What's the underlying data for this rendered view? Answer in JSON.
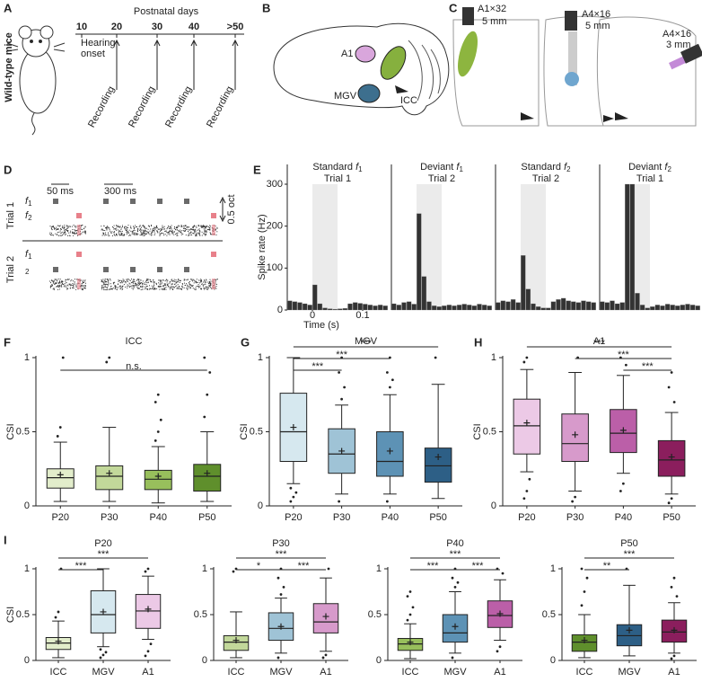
{
  "panel_letters": [
    "A",
    "B",
    "C",
    "D",
    "E",
    "F",
    "G",
    "H",
    "I"
  ],
  "panel_a": {
    "subject": "Wild-type mice",
    "axis_title": "Postnatal days",
    "days": [
      "10",
      "20",
      "30",
      "40",
      ">50"
    ],
    "hearing_onset": [
      "Hearing",
      "onset"
    ],
    "recordings": [
      "Recording",
      "Recording",
      "Recording",
      "Recording"
    ]
  },
  "panel_b": {
    "labels": [
      "A1",
      "MGV",
      "ICC"
    ]
  },
  "panel_c": {
    "probes": [
      {
        "name": "A1×32",
        "depth": "5 mm"
      },
      {
        "name": "A4×16",
        "depth": "5 mm"
      },
      {
        "name": "A4×16",
        "depth": "3 mm"
      }
    ]
  },
  "panel_d": {
    "trials": [
      {
        "label": "Trial 1",
        "rows": [
          {
            "symbol": "f",
            "sub": "1"
          },
          {
            "symbol": "f",
            "sub": "2"
          }
        ]
      },
      {
        "label": "Trial 2",
        "rows": [
          {
            "symbol": "f",
            "sub": "1"
          },
          {
            "sub": "2"
          }
        ]
      }
    ],
    "scale_bars": [
      "50 ms",
      "300 ms"
    ],
    "octave": "0.5 oct"
  },
  "chart_data": [
    {
      "type": "histogram",
      "title": {
        "label": "Standard",
        "symbol": "f",
        "sub": "1"
      },
      "title_color": "#7a7a7a",
      "subtitle": "Trial 1",
      "ylabel": "Spike rate (Hz)",
      "xlabel": "Time (s)",
      "color": "#333333",
      "shade": [
        0,
        0.05
      ],
      "bins": [
        -0.05,
        -0.04,
        -0.03,
        -0.02,
        -0.01,
        0,
        0.01,
        0.02,
        0.03,
        0.04,
        0.05,
        0.06,
        0.07,
        0.08,
        0.09,
        0.1,
        0.11,
        0.12,
        0.13,
        0.14,
        0.15
      ],
      "counts": [
        22,
        20,
        18,
        15,
        12,
        60,
        15,
        5,
        3,
        2,
        3,
        4,
        15,
        18,
        16,
        14,
        12,
        10,
        12,
        10
      ],
      "xlim": [
        -0.05,
        0.15
      ],
      "xticks": [
        0,
        0.1
      ],
      "ylim": [
        0,
        300
      ],
      "yticks": [
        0,
        100,
        200,
        300
      ]
    },
    {
      "type": "histogram",
      "title": {
        "label": "Deviant",
        "symbol": "f",
        "sub": "1"
      },
      "title_color": "#e0707a",
      "subtitle": "Trial 2",
      "color": "#333333",
      "shade": [
        0,
        0.05
      ],
      "bins": [
        -0.05,
        -0.04,
        -0.03,
        -0.02,
        -0.01,
        0,
        0.01,
        0.02,
        0.03,
        0.04,
        0.05,
        0.06,
        0.07,
        0.08,
        0.09,
        0.1,
        0.11,
        0.12,
        0.13,
        0.14,
        0.15
      ],
      "counts": [
        15,
        12,
        18,
        20,
        14,
        230,
        80,
        20,
        10,
        8,
        10,
        12,
        10,
        12,
        14,
        12,
        10,
        14,
        12,
        10
      ],
      "xlim": [
        -0.05,
        0.15
      ],
      "ylim": [
        0,
        300
      ]
    },
    {
      "type": "histogram",
      "title": {
        "label": "Standard",
        "symbol": "f",
        "sub": "2"
      },
      "title_color": "#7a7a7a",
      "subtitle": "Trial 2",
      "color": "#333333",
      "shade": [
        0,
        0.05
      ],
      "bins": [
        -0.05,
        -0.04,
        -0.03,
        -0.02,
        -0.01,
        0,
        0.01,
        0.02,
        0.03,
        0.04,
        0.05,
        0.06,
        0.07,
        0.08,
        0.09,
        0.1,
        0.11,
        0.12,
        0.13,
        0.14,
        0.15
      ],
      "counts": [
        18,
        22,
        20,
        25,
        18,
        130,
        50,
        15,
        8,
        5,
        5,
        20,
        25,
        28,
        22,
        20,
        18,
        22,
        20,
        18
      ],
      "xlim": [
        -0.05,
        0.15
      ],
      "ylim": [
        0,
        300
      ]
    },
    {
      "type": "histogram",
      "title": {
        "label": "Deviant",
        "symbol": "f",
        "sub": "2"
      },
      "title_color": "#e0707a",
      "subtitle": "Trial 1",
      "color": "#333333",
      "shade": [
        0,
        0.05
      ],
      "bins": [
        -0.05,
        -0.04,
        -0.03,
        -0.02,
        -0.01,
        0,
        0.01,
        0.02,
        0.03,
        0.04,
        0.05,
        0.06,
        0.07,
        0.08,
        0.09,
        0.1,
        0.11,
        0.12,
        0.13,
        0.14,
        0.15
      ],
      "counts": [
        20,
        18,
        22,
        15,
        18,
        300,
        300,
        40,
        12,
        5,
        8,
        12,
        10,
        14,
        12,
        10,
        12,
        14,
        12,
        10
      ],
      "xlim": [
        -0.05,
        0.15
      ],
      "ylim": [
        0,
        300
      ]
    },
    {
      "type": "box",
      "title": "ICC",
      "ylabel": "CSI",
      "categories": [
        "P20",
        "P30",
        "P40",
        "P50"
      ],
      "colors": [
        "#e2edcb",
        "#c2d89a",
        "#98bf5c",
        "#5f8f2c"
      ],
      "ylim": [
        0,
        1
      ],
      "yticks": [
        0,
        0.5,
        1
      ],
      "boxes": [
        {
          "low": 0.03,
          "q1": 0.12,
          "median": 0.19,
          "q3": 0.25,
          "high": 0.43,
          "mean": 0.21,
          "outliers": [
            0.47,
            0.53,
            1
          ]
        },
        {
          "low": 0.03,
          "q1": 0.11,
          "median": 0.2,
          "q3": 0.27,
          "high": 0.53,
          "mean": 0.22,
          "outliers": [
            0.97,
            1
          ]
        },
        {
          "low": 0.02,
          "q1": 0.11,
          "median": 0.18,
          "q3": 0.24,
          "high": 0.4,
          "mean": 0.2,
          "outliers": [
            0.44,
            0.5,
            0.58,
            0.7,
            0.75
          ]
        },
        {
          "low": 0.03,
          "q1": 0.1,
          "median": 0.2,
          "q3": 0.28,
          "high": 0.5,
          "mean": 0.22,
          "outliers": [
            0.6,
            0.75,
            0.9,
            1
          ]
        }
      ],
      "comparisons": [
        {
          "from": "P20",
          "to": "P50",
          "label": "n.s."
        }
      ]
    },
    {
      "type": "box",
      "title": "MGV",
      "ylabel": "CSI",
      "categories": [
        "P20",
        "P30",
        "P40",
        "P50"
      ],
      "colors": [
        "#d6e8ef",
        "#9fc3d6",
        "#5d92b5",
        "#2d5f86"
      ],
      "ylim": [
        0,
        1
      ],
      "yticks": [
        0,
        0.5,
        1
      ],
      "boxes": [
        {
          "low": 0.15,
          "q1": 0.3,
          "median": 0.5,
          "q3": 0.76,
          "high": 1,
          "mean": 0.53,
          "outliers": [
            0.03,
            0.06,
            0.09,
            0.12
          ]
        },
        {
          "low": 0.08,
          "q1": 0.22,
          "median": 0.35,
          "q3": 0.52,
          "high": 0.68,
          "mean": 0.37,
          "outliers": [
            0.03,
            0.72,
            0.8,
            0.9,
            1
          ]
        },
        {
          "low": 0.08,
          "q1": 0.2,
          "median": 0.3,
          "q3": 0.5,
          "high": 0.75,
          "mean": 0.37,
          "outliers": [
            0.03,
            0.8,
            0.85,
            0.9,
            1
          ]
        },
        {
          "low": 0.05,
          "q1": 0.16,
          "median": 0.27,
          "q3": 0.39,
          "high": 0.82,
          "mean": 0.33,
          "outliers": [
            1
          ]
        }
      ],
      "comparisons": [
        {
          "from": "P20",
          "to": "P30",
          "label": "***"
        },
        {
          "from": "P20",
          "to": "P40",
          "label": "***"
        },
        {
          "from": "P20",
          "to": "P50",
          "label": "***"
        }
      ]
    },
    {
      "type": "box",
      "title": "A1",
      "ylabel": "CSI",
      "categories": [
        "P20",
        "P30",
        "P40",
        "P50"
      ],
      "colors": [
        "#ecc9e6",
        "#d79acb",
        "#bb5fa8",
        "#8b1e5d"
      ],
      "ylim": [
        0,
        1
      ],
      "yticks": [
        0,
        0.5,
        1
      ],
      "boxes": [
        {
          "low": 0.23,
          "q1": 0.35,
          "median": 0.54,
          "q3": 0.72,
          "high": 0.92,
          "mean": 0.56,
          "outliers": [
            0.05,
            0.1,
            0.18,
            0.97,
            1
          ]
        },
        {
          "low": 0.1,
          "q1": 0.3,
          "median": 0.42,
          "q3": 0.62,
          "high": 0.9,
          "mean": 0.48,
          "outliers": [
            0.03,
            0.06,
            1
          ]
        },
        {
          "low": 0.22,
          "q1": 0.36,
          "median": 0.49,
          "q3": 0.65,
          "high": 0.88,
          "mean": 0.51,
          "outliers": [
            0.1,
            0.15,
            0.95,
            1
          ]
        },
        {
          "low": 0.08,
          "q1": 0.2,
          "median": 0.31,
          "q3": 0.44,
          "high": 0.63,
          "mean": 0.33,
          "outliers": [
            0.02,
            0.05,
            0.7,
            0.8,
            0.9
          ]
        }
      ],
      "comparisons": [
        {
          "from": "P40",
          "to": "P50",
          "label": "***"
        },
        {
          "from": "P30",
          "to": "P50",
          "label": "***"
        },
        {
          "from": "P20",
          "to": "P50",
          "label": "***"
        }
      ]
    },
    {
      "type": "box",
      "title": "P20",
      "ylabel": "CSI",
      "categories": [
        "ICC",
        "MGV",
        "A1"
      ],
      "colors": [
        "#e2edcb",
        "#d6e8ef",
        "#ecc9e6"
      ],
      "ylim": [
        0,
        1
      ],
      "yticks": [
        0,
        0.5,
        1
      ],
      "boxes": [
        {
          "low": 0.03,
          "q1": 0.12,
          "median": 0.19,
          "q3": 0.25,
          "high": 0.43,
          "mean": 0.21,
          "outliers": [
            0.47,
            0.53,
            1
          ]
        },
        {
          "low": 0.15,
          "q1": 0.3,
          "median": 0.5,
          "q3": 0.76,
          "high": 1,
          "mean": 0.53,
          "outliers": [
            0.03,
            0.06,
            0.09,
            0.12
          ]
        },
        {
          "low": 0.23,
          "q1": 0.35,
          "median": 0.54,
          "q3": 0.72,
          "high": 0.92,
          "mean": 0.56,
          "outliers": [
            0.05,
            0.1,
            0.18,
            0.97,
            1
          ]
        }
      ],
      "comparisons": [
        {
          "from": "ICC",
          "to": "MGV",
          "label": "***"
        },
        {
          "from": "ICC",
          "to": "A1",
          "label": "***"
        }
      ]
    },
    {
      "type": "box",
      "title": "P30",
      "categories": [
        "ICC",
        "MGV",
        "A1"
      ],
      "colors": [
        "#c2d89a",
        "#9fc3d6",
        "#d79acb"
      ],
      "ylim": [
        0,
        1
      ],
      "yticks": [
        0,
        0.5,
        1
      ],
      "boxes": [
        {
          "low": 0.03,
          "q1": 0.11,
          "median": 0.2,
          "q3": 0.27,
          "high": 0.53,
          "mean": 0.22,
          "outliers": [
            0.97,
            1
          ]
        },
        {
          "low": 0.08,
          "q1": 0.22,
          "median": 0.35,
          "q3": 0.52,
          "high": 0.68,
          "mean": 0.37,
          "outliers": [
            0.03,
            0.72,
            0.8,
            0.9,
            1
          ]
        },
        {
          "low": 0.1,
          "q1": 0.3,
          "median": 0.42,
          "q3": 0.62,
          "high": 0.9,
          "mean": 0.48,
          "outliers": [
            0.03,
            0.06,
            1
          ]
        }
      ],
      "comparisons": [
        {
          "from": "ICC",
          "to": "MGV",
          "label": "*"
        },
        {
          "from": "ICC",
          "to": "A1",
          "label": "***"
        },
        {
          "from": "MGV",
          "to": "A1",
          "label": "***"
        }
      ]
    },
    {
      "type": "box",
      "title": "P40",
      "categories": [
        "ICC",
        "MGV",
        "A1"
      ],
      "colors": [
        "#98bf5c",
        "#5d92b5",
        "#bb5fa8"
      ],
      "ylim": [
        0,
        1
      ],
      "yticks": [
        0,
        0.5,
        1
      ],
      "boxes": [
        {
          "low": 0.02,
          "q1": 0.11,
          "median": 0.18,
          "q3": 0.24,
          "high": 0.4,
          "mean": 0.2,
          "outliers": [
            0.44,
            0.5,
            0.58,
            0.7,
            0.75
          ]
        },
        {
          "low": 0.08,
          "q1": 0.2,
          "median": 0.3,
          "q3": 0.5,
          "high": 0.75,
          "mean": 0.37,
          "outliers": [
            0.03,
            0.8,
            0.85,
            0.9,
            1
          ]
        },
        {
          "low": 0.22,
          "q1": 0.36,
          "median": 0.49,
          "q3": 0.65,
          "high": 0.88,
          "mean": 0.51,
          "outliers": [
            0.1,
            0.15,
            0.95,
            1
          ]
        }
      ],
      "comparisons": [
        {
          "from": "ICC",
          "to": "MGV",
          "label": "***"
        },
        {
          "from": "ICC",
          "to": "A1",
          "label": "***"
        },
        {
          "from": "MGV",
          "to": "A1",
          "label": "***"
        }
      ]
    },
    {
      "type": "box",
      "title": "P50",
      "categories": [
        "ICC",
        "MGV",
        "A1"
      ],
      "colors": [
        "#5f8f2c",
        "#2d5f86",
        "#8b1e5d"
      ],
      "ylim": [
        0,
        1
      ],
      "yticks": [
        0,
        0.5,
        1
      ],
      "boxes": [
        {
          "low": 0.03,
          "q1": 0.1,
          "median": 0.2,
          "q3": 0.28,
          "high": 0.5,
          "mean": 0.22,
          "outliers": [
            0.6,
            0.75,
            0.9,
            1
          ]
        },
        {
          "low": 0.05,
          "q1": 0.16,
          "median": 0.27,
          "q3": 0.39,
          "high": 0.82,
          "mean": 0.33,
          "outliers": [
            1
          ]
        },
        {
          "low": 0.08,
          "q1": 0.2,
          "median": 0.31,
          "q3": 0.44,
          "high": 0.63,
          "mean": 0.33,
          "outliers": [
            0.02,
            0.05,
            0.7,
            0.8,
            0.9
          ]
        }
      ],
      "comparisons": [
        {
          "from": "ICC",
          "to": "MGV",
          "label": "**"
        },
        {
          "from": "ICC",
          "to": "A1",
          "label": "***"
        }
      ]
    }
  ]
}
